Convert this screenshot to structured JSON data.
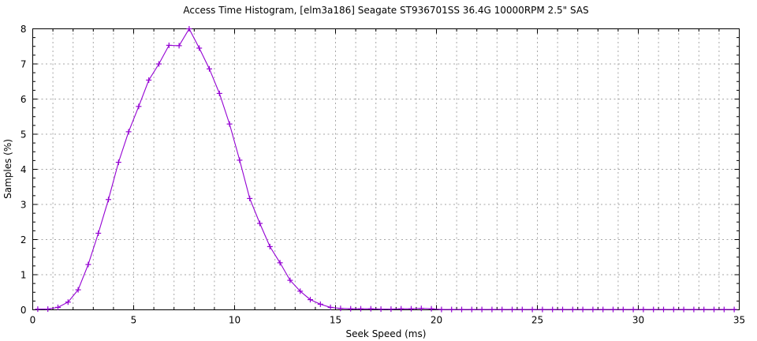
{
  "chart_data": {
    "type": "line",
    "title": "Access Time Histogram, [elm3a186] Seagate ST936701SS 36.4G 10000RPM 2.5\" SAS",
    "xlabel": "Seek Speed (ms)",
    "ylabel": "Samples (%)",
    "xlim": [
      0,
      35
    ],
    "ylim": [
      0,
      8
    ],
    "xticks": [
      0,
      5,
      10,
      15,
      20,
      25,
      30,
      35
    ],
    "yticks": [
      0,
      1,
      2,
      3,
      4,
      5,
      6,
      7,
      8
    ],
    "x_minor_step": 1,
    "y_minor_step": 0.25,
    "grid": {
      "on": true,
      "x_step": 1,
      "y_step": 1,
      "color": "#a6a6a6",
      "style": "dashed"
    },
    "legend": "none",
    "line_color": "#9400d3",
    "marker": "plus",
    "background": "#ffffff",
    "x": [
      0.25,
      0.75,
      1.25,
      1.75,
      2.25,
      2.75,
      3.25,
      3.75,
      4.25,
      4.75,
      5.25,
      5.75,
      6.25,
      6.75,
      7.25,
      7.75,
      8.25,
      8.75,
      9.25,
      9.75,
      10.25,
      10.75,
      11.25,
      11.75,
      12.25,
      12.75,
      13.25,
      13.75,
      14.25,
      14.75,
      15.25,
      15.75,
      16.25,
      16.75,
      17.25,
      17.75,
      18.25,
      18.75,
      19.25,
      19.75,
      20.25,
      20.75,
      21.25,
      21.75,
      22.25,
      22.75,
      23.25,
      23.75,
      24.25,
      24.75,
      25.25,
      25.75,
      26.25,
      26.75,
      27.25,
      27.75,
      28.25,
      28.75,
      29.25,
      29.75,
      30.25,
      30.75,
      31.25,
      31.75,
      32.25,
      32.75,
      33.25,
      33.75,
      34.25,
      34.75
    ],
    "values": [
      0.02,
      0.02,
      0.07,
      0.22,
      0.57,
      1.29,
      2.18,
      3.14,
      4.2,
      5.07,
      5.79,
      6.54,
      7.0,
      7.53,
      7.52,
      8.0,
      7.45,
      6.86,
      6.16,
      5.29,
      4.26,
      3.17,
      2.46,
      1.8,
      1.34,
      0.84,
      0.53,
      0.29,
      0.16,
      0.07,
      0.04,
      0.03,
      0.03,
      0.03,
      0.02,
      0.02,
      0.03,
      0.03,
      0.04,
      0.03,
      0.01,
      0.01,
      0.01,
      0.01,
      0.01,
      0.01,
      0.01,
      0.01,
      0.01,
      0.01,
      0.01,
      0.01,
      0.01,
      0.01,
      0.01,
      0.01,
      0.01,
      0.01,
      0.01,
      0.01,
      0.01,
      0.01,
      0.01,
      0.01,
      0.01,
      0.01,
      0.01,
      0.01,
      0.01,
      0.01
    ]
  }
}
